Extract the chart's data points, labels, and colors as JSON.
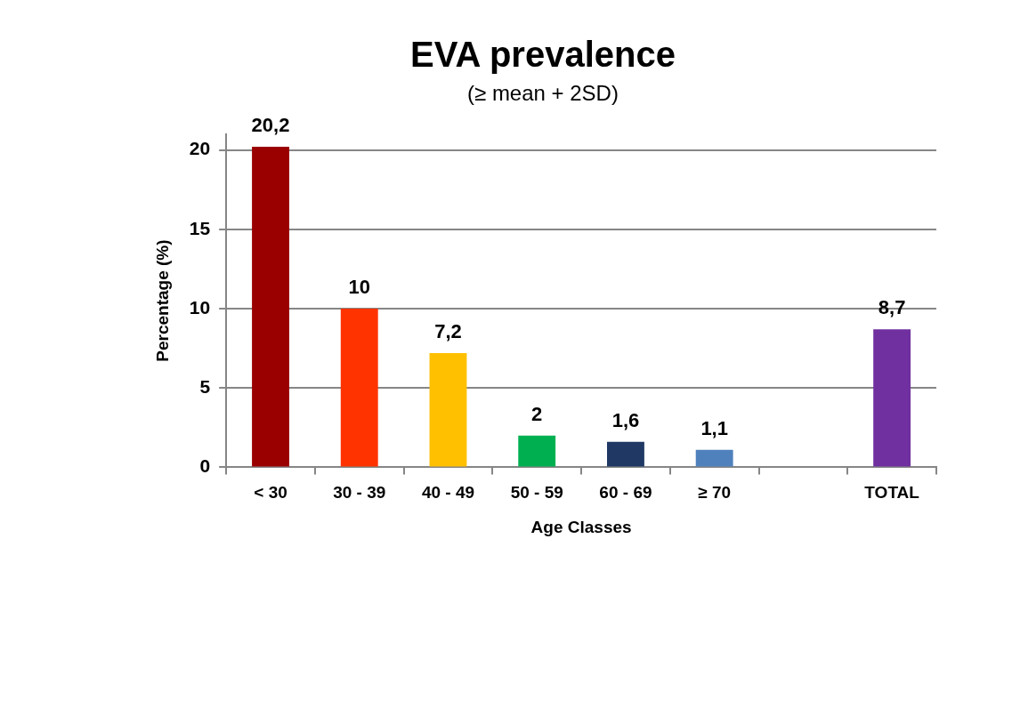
{
  "chart_data": {
    "type": "bar",
    "title": "EVA prevalence",
    "subtitle": "(≥ mean + 2SD)",
    "xlabel": "Age Classes",
    "ylabel": "Percentage (%)",
    "categories": [
      "< 30",
      "30 - 39",
      "40 - 49",
      "50 - 59",
      "60 - 69",
      "≥ 70",
      null,
      "TOTAL"
    ],
    "values": [
      20.2,
      10,
      7.2,
      2,
      1.6,
      1.1,
      null,
      8.7
    ],
    "colors": [
      "#9b0000",
      "#ff3300",
      "#ffc000",
      "#00b050",
      "#1f3864",
      "#4f81bd",
      null,
      "#7030a0"
    ],
    "value_labels": [
      "20,2",
      "10",
      "7,2",
      "2",
      "1,6",
      "1,1",
      null,
      "8,7"
    ],
    "ylim": [
      0,
      21
    ],
    "yticks": [
      0,
      5,
      10,
      15,
      20
    ],
    "grid": "y",
    "legend": false
  }
}
